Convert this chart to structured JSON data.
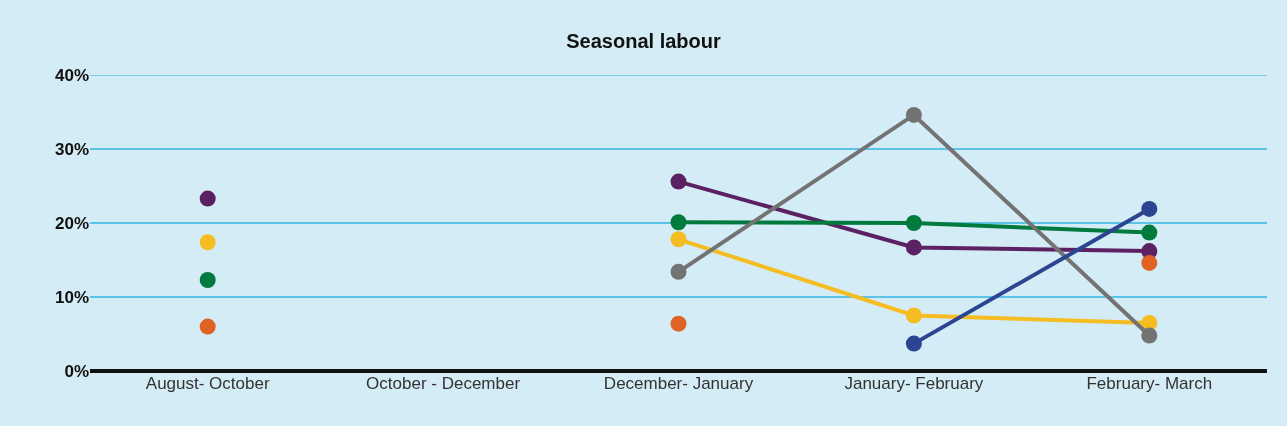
{
  "chart_data": {
    "type": "line",
    "title": "Seasonal labour",
    "categories": [
      "August- October",
      "October - December",
      "December- January",
      "January- February",
      "February- March"
    ],
    "series": [
      {
        "color": "#5b2163",
        "values": [
          23.3,
          null,
          25.6,
          16.7,
          16.2
        ]
      },
      {
        "color": "#f5bd22",
        "values": [
          17.4,
          null,
          17.8,
          7.5,
          6.5
        ]
      },
      {
        "color": "#007a3d",
        "values": [
          12.3,
          null,
          20.1,
          20.0,
          18.7
        ]
      },
      {
        "type": "scatter",
        "color": "#e06326",
        "values": [
          6.0,
          null,
          6.4,
          null,
          14.6
        ]
      },
      {
        "color": "#737373",
        "values": [
          null,
          null,
          13.4,
          34.6,
          4.8
        ]
      },
      {
        "color": "#2b4590",
        "values": [
          null,
          null,
          null,
          3.7,
          21.9
        ]
      }
    ],
    "ylim": [
      0,
      40
    ],
    "yticks": [
      {
        "value": 0,
        "label": "0%"
      },
      {
        "value": 10,
        "label": "10%"
      },
      {
        "value": 20,
        "label": "20%"
      },
      {
        "value": 30,
        "label": "30%"
      },
      {
        "value": 40,
        "label": "40%"
      }
    ],
    "grid": "y",
    "marker": "circle",
    "line_style": "solid"
  }
}
